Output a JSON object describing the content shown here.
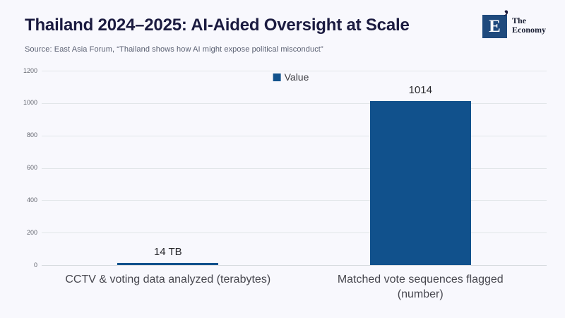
{
  "header": {
    "title": "Thailand 2024–2025: AI-Aided Oversight at Scale",
    "logo": {
      "letter": "E",
      "mark": "’",
      "name_line1": "The",
      "name_line2": "Economy"
    }
  },
  "source": "Source: East Asia Forum, “Thailand shows how AI might expose political misconduct”",
  "legend": {
    "label": "Value"
  },
  "colors": {
    "bar": "#11518c",
    "title_navy": "#1b1b40",
    "logo_square": "#1f4a7d",
    "grid": "#e2e6e9",
    "background": "#f8f8fd"
  },
  "chart_data": {
    "type": "bar",
    "title": "Thailand 2024–2025: AI-Aided Oversight at Scale",
    "series_name": "Value",
    "categories": [
      "CCTV & voting data analyzed (terabytes)",
      "Matched vote sequences flagged (number)"
    ],
    "categories_display": [
      [
        "CCTV & voting data analyzed (terabytes)"
      ],
      [
        "Matched vote sequences flagged",
        "(number)"
      ]
    ],
    "values": [
      14,
      1014
    ],
    "bar_labels": [
      "14 TB",
      "1014"
    ],
    "xlabel": "",
    "ylabel": "",
    "ylim": [
      0,
      1200
    ],
    "yticks": [
      0,
      200,
      400,
      600,
      800,
      1000,
      1200
    ],
    "grid": true,
    "legend_position": "top-center"
  }
}
